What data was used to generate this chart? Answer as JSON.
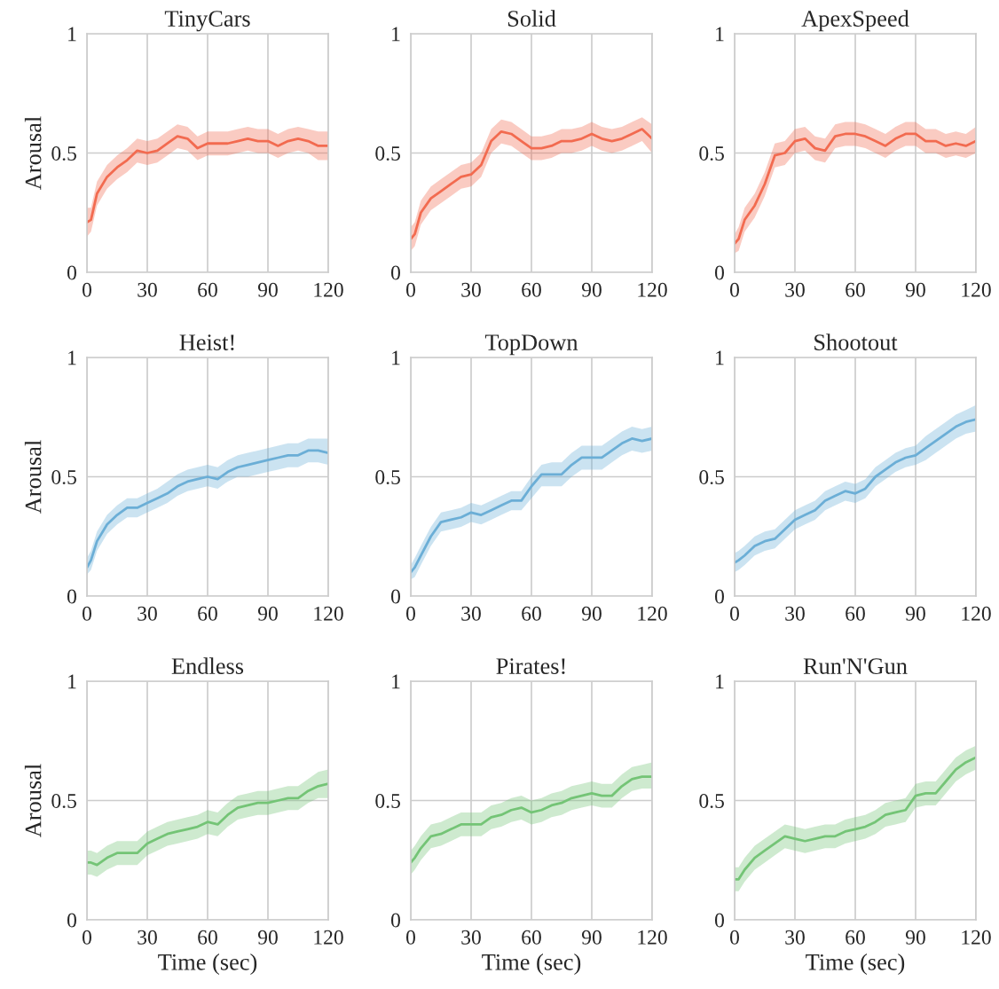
{
  "chart_data": [
    {
      "type": "line",
      "title": "TinyCars",
      "ylabel": "Arousal",
      "x": [
        0,
        2,
        5,
        10,
        15,
        20,
        25,
        30,
        35,
        40,
        45,
        50,
        55,
        60,
        65,
        70,
        75,
        80,
        85,
        90,
        95,
        100,
        105,
        110,
        115,
        120
      ],
      "xlim": [
        0,
        120
      ],
      "ylim": [
        0,
        1
      ],
      "xticks": [
        0,
        30,
        60,
        90,
        120
      ],
      "yticks": [
        0,
        0.5,
        1
      ],
      "grid": true,
      "series": [
        {
          "color": "#f26b50",
          "values": [
            0.21,
            0.22,
            0.33,
            0.4,
            0.44,
            0.47,
            0.51,
            0.5,
            0.51,
            0.54,
            0.57,
            0.56,
            0.52,
            0.54,
            0.54,
            0.54,
            0.55,
            0.56,
            0.55,
            0.55,
            0.53,
            0.55,
            0.56,
            0.55,
            0.53,
            0.53
          ],
          "lower": [
            0.15,
            0.17,
            0.28,
            0.35,
            0.39,
            0.42,
            0.46,
            0.45,
            0.46,
            0.49,
            0.52,
            0.51,
            0.47,
            0.49,
            0.49,
            0.49,
            0.5,
            0.51,
            0.5,
            0.5,
            0.48,
            0.5,
            0.51,
            0.5,
            0.47,
            0.47
          ],
          "upper": [
            0.27,
            0.27,
            0.38,
            0.45,
            0.49,
            0.52,
            0.56,
            0.55,
            0.56,
            0.59,
            0.62,
            0.61,
            0.57,
            0.59,
            0.59,
            0.59,
            0.6,
            0.61,
            0.6,
            0.6,
            0.58,
            0.6,
            0.61,
            0.6,
            0.59,
            0.59
          ]
        }
      ]
    },
    {
      "type": "line",
      "title": "Solid",
      "x": [
        0,
        2,
        5,
        10,
        15,
        20,
        25,
        30,
        35,
        40,
        45,
        50,
        55,
        60,
        65,
        70,
        75,
        80,
        85,
        90,
        95,
        100,
        105,
        110,
        115,
        120
      ],
      "xlim": [
        0,
        120
      ],
      "ylim": [
        0,
        1
      ],
      "xticks": [
        0,
        30,
        60,
        90,
        120
      ],
      "yticks": [
        0,
        0.5,
        1
      ],
      "grid": true,
      "series": [
        {
          "color": "#f26b50",
          "values": [
            0.14,
            0.16,
            0.25,
            0.31,
            0.34,
            0.37,
            0.4,
            0.41,
            0.45,
            0.55,
            0.59,
            0.58,
            0.55,
            0.52,
            0.52,
            0.53,
            0.55,
            0.55,
            0.56,
            0.58,
            0.56,
            0.55,
            0.56,
            0.58,
            0.6,
            0.56
          ],
          "lower": [
            0.09,
            0.11,
            0.2,
            0.26,
            0.29,
            0.32,
            0.35,
            0.36,
            0.4,
            0.5,
            0.54,
            0.53,
            0.5,
            0.47,
            0.47,
            0.48,
            0.5,
            0.5,
            0.51,
            0.53,
            0.51,
            0.5,
            0.51,
            0.53,
            0.55,
            0.5
          ],
          "upper": [
            0.19,
            0.21,
            0.3,
            0.36,
            0.39,
            0.42,
            0.45,
            0.46,
            0.5,
            0.6,
            0.64,
            0.63,
            0.6,
            0.57,
            0.57,
            0.58,
            0.6,
            0.6,
            0.61,
            0.63,
            0.61,
            0.6,
            0.61,
            0.63,
            0.65,
            0.62
          ]
        }
      ]
    },
    {
      "type": "line",
      "title": "ApexSpeed",
      "x": [
        0,
        2,
        5,
        10,
        15,
        20,
        25,
        30,
        35,
        40,
        45,
        50,
        55,
        60,
        65,
        70,
        75,
        80,
        85,
        90,
        95,
        100,
        105,
        110,
        115,
        120
      ],
      "xlim": [
        0,
        120
      ],
      "ylim": [
        0,
        1
      ],
      "xticks": [
        0,
        30,
        60,
        90,
        120
      ],
      "yticks": [
        0,
        0.5,
        1
      ],
      "grid": true,
      "series": [
        {
          "color": "#f26b50",
          "values": [
            0.12,
            0.14,
            0.22,
            0.28,
            0.37,
            0.49,
            0.5,
            0.55,
            0.56,
            0.52,
            0.51,
            0.57,
            0.58,
            0.58,
            0.57,
            0.55,
            0.53,
            0.56,
            0.58,
            0.58,
            0.55,
            0.55,
            0.53,
            0.54,
            0.53,
            0.55
          ],
          "lower": [
            0.08,
            0.09,
            0.17,
            0.23,
            0.32,
            0.44,
            0.45,
            0.5,
            0.51,
            0.47,
            0.46,
            0.52,
            0.53,
            0.53,
            0.52,
            0.5,
            0.48,
            0.51,
            0.53,
            0.53,
            0.5,
            0.5,
            0.48,
            0.49,
            0.48,
            0.5
          ],
          "upper": [
            0.16,
            0.19,
            0.27,
            0.33,
            0.42,
            0.54,
            0.55,
            0.6,
            0.61,
            0.57,
            0.56,
            0.62,
            0.63,
            0.63,
            0.62,
            0.6,
            0.58,
            0.61,
            0.63,
            0.63,
            0.6,
            0.6,
            0.58,
            0.59,
            0.58,
            0.61
          ]
        }
      ]
    },
    {
      "type": "line",
      "title": "Heist!",
      "ylabel": "Arousal",
      "x": [
        0,
        2,
        5,
        10,
        15,
        20,
        25,
        30,
        35,
        40,
        45,
        50,
        55,
        60,
        65,
        70,
        75,
        80,
        85,
        90,
        95,
        100,
        105,
        110,
        115,
        120
      ],
      "xlim": [
        0,
        120
      ],
      "ylim": [
        0,
        1
      ],
      "xticks": [
        0,
        30,
        60,
        90,
        120
      ],
      "yticks": [
        0,
        0.5,
        1
      ],
      "grid": true,
      "series": [
        {
          "color": "#6baed6",
          "values": [
            0.12,
            0.15,
            0.23,
            0.3,
            0.34,
            0.37,
            0.37,
            0.39,
            0.41,
            0.43,
            0.46,
            0.48,
            0.49,
            0.5,
            0.49,
            0.52,
            0.54,
            0.55,
            0.56,
            0.57,
            0.58,
            0.59,
            0.59,
            0.61,
            0.61,
            0.6
          ],
          "lower": [
            0.09,
            0.11,
            0.19,
            0.26,
            0.3,
            0.33,
            0.33,
            0.35,
            0.37,
            0.39,
            0.42,
            0.44,
            0.45,
            0.46,
            0.45,
            0.48,
            0.5,
            0.5,
            0.51,
            0.52,
            0.53,
            0.54,
            0.54,
            0.56,
            0.56,
            0.55
          ],
          "upper": [
            0.16,
            0.19,
            0.27,
            0.34,
            0.38,
            0.41,
            0.41,
            0.43,
            0.45,
            0.48,
            0.51,
            0.53,
            0.54,
            0.55,
            0.54,
            0.57,
            0.59,
            0.6,
            0.61,
            0.62,
            0.63,
            0.64,
            0.64,
            0.66,
            0.66,
            0.66
          ]
        }
      ]
    },
    {
      "type": "line",
      "title": "TopDown",
      "x": [
        0,
        2,
        5,
        10,
        15,
        20,
        25,
        30,
        35,
        40,
        45,
        50,
        55,
        60,
        65,
        70,
        75,
        80,
        85,
        90,
        95,
        100,
        105,
        110,
        115,
        120
      ],
      "xlim": [
        0,
        120
      ],
      "ylim": [
        0,
        1
      ],
      "xticks": [
        0,
        30,
        60,
        90,
        120
      ],
      "yticks": [
        0,
        0.5,
        1
      ],
      "grid": true,
      "series": [
        {
          "color": "#6baed6",
          "values": [
            0.1,
            0.12,
            0.17,
            0.25,
            0.31,
            0.32,
            0.33,
            0.35,
            0.34,
            0.36,
            0.38,
            0.4,
            0.4,
            0.46,
            0.51,
            0.51,
            0.51,
            0.55,
            0.58,
            0.58,
            0.58,
            0.61,
            0.64,
            0.66,
            0.65,
            0.66
          ],
          "lower": [
            0.07,
            0.08,
            0.13,
            0.21,
            0.27,
            0.28,
            0.29,
            0.31,
            0.3,
            0.32,
            0.34,
            0.36,
            0.36,
            0.41,
            0.46,
            0.46,
            0.46,
            0.5,
            0.53,
            0.53,
            0.53,
            0.56,
            0.59,
            0.61,
            0.6,
            0.61
          ],
          "upper": [
            0.13,
            0.16,
            0.21,
            0.29,
            0.35,
            0.36,
            0.37,
            0.39,
            0.38,
            0.4,
            0.42,
            0.44,
            0.44,
            0.5,
            0.55,
            0.56,
            0.56,
            0.6,
            0.63,
            0.63,
            0.63,
            0.66,
            0.69,
            0.71,
            0.7,
            0.71
          ]
        }
      ]
    },
    {
      "type": "line",
      "title": "Shootout",
      "x": [
        0,
        2,
        5,
        10,
        15,
        20,
        25,
        30,
        35,
        40,
        45,
        50,
        55,
        60,
        65,
        70,
        75,
        80,
        85,
        90,
        95,
        100,
        105,
        110,
        115,
        120
      ],
      "xlim": [
        0,
        120
      ],
      "ylim": [
        0,
        1
      ],
      "xticks": [
        0,
        30,
        60,
        90,
        120
      ],
      "yticks": [
        0,
        0.5,
        1
      ],
      "grid": true,
      "series": [
        {
          "color": "#6baed6",
          "values": [
            0.14,
            0.15,
            0.17,
            0.21,
            0.23,
            0.24,
            0.28,
            0.32,
            0.34,
            0.36,
            0.4,
            0.42,
            0.44,
            0.43,
            0.45,
            0.5,
            0.53,
            0.56,
            0.58,
            0.59,
            0.62,
            0.65,
            0.68,
            0.71,
            0.73,
            0.74
          ],
          "lower": [
            0.1,
            0.11,
            0.13,
            0.17,
            0.19,
            0.2,
            0.24,
            0.28,
            0.3,
            0.32,
            0.36,
            0.38,
            0.4,
            0.39,
            0.41,
            0.46,
            0.49,
            0.52,
            0.54,
            0.55,
            0.57,
            0.6,
            0.63,
            0.66,
            0.68,
            0.69
          ],
          "upper": [
            0.18,
            0.19,
            0.21,
            0.25,
            0.27,
            0.28,
            0.32,
            0.36,
            0.38,
            0.4,
            0.44,
            0.46,
            0.48,
            0.47,
            0.49,
            0.54,
            0.57,
            0.6,
            0.62,
            0.63,
            0.67,
            0.7,
            0.73,
            0.76,
            0.78,
            0.8
          ]
        }
      ]
    },
    {
      "type": "line",
      "title": "Endless",
      "ylabel": "Arousal",
      "xlabel": "Time (sec)",
      "x": [
        0,
        2,
        5,
        10,
        15,
        20,
        25,
        30,
        35,
        40,
        45,
        50,
        55,
        60,
        65,
        70,
        75,
        80,
        85,
        90,
        95,
        100,
        105,
        110,
        115,
        120
      ],
      "xlim": [
        0,
        120
      ],
      "ylim": [
        0,
        1
      ],
      "xticks": [
        0,
        30,
        60,
        90,
        120
      ],
      "yticks": [
        0,
        0.5,
        1
      ],
      "grid": true,
      "series": [
        {
          "color": "#74c476",
          "values": [
            0.24,
            0.24,
            0.23,
            0.26,
            0.28,
            0.28,
            0.28,
            0.32,
            0.34,
            0.36,
            0.37,
            0.38,
            0.39,
            0.41,
            0.4,
            0.44,
            0.47,
            0.48,
            0.49,
            0.49,
            0.5,
            0.51,
            0.51,
            0.54,
            0.56,
            0.57
          ],
          "lower": [
            0.19,
            0.19,
            0.18,
            0.21,
            0.23,
            0.23,
            0.23,
            0.27,
            0.29,
            0.31,
            0.32,
            0.33,
            0.34,
            0.36,
            0.35,
            0.39,
            0.42,
            0.43,
            0.44,
            0.44,
            0.45,
            0.46,
            0.46,
            0.49,
            0.51,
            0.51
          ],
          "upper": [
            0.29,
            0.29,
            0.28,
            0.31,
            0.33,
            0.33,
            0.33,
            0.37,
            0.39,
            0.41,
            0.42,
            0.43,
            0.44,
            0.46,
            0.45,
            0.49,
            0.52,
            0.53,
            0.54,
            0.54,
            0.55,
            0.56,
            0.56,
            0.59,
            0.62,
            0.63
          ]
        }
      ]
    },
    {
      "type": "line",
      "title": "Pirates!",
      "xlabel": "Time (sec)",
      "x": [
        0,
        2,
        5,
        10,
        15,
        20,
        25,
        30,
        35,
        40,
        45,
        50,
        55,
        60,
        65,
        70,
        75,
        80,
        85,
        90,
        95,
        100,
        105,
        110,
        115,
        120
      ],
      "xlim": [
        0,
        120
      ],
      "ylim": [
        0,
        1
      ],
      "xticks": [
        0,
        30,
        60,
        90,
        120
      ],
      "yticks": [
        0,
        0.5,
        1
      ],
      "grid": true,
      "series": [
        {
          "color": "#74c476",
          "values": [
            0.24,
            0.26,
            0.3,
            0.35,
            0.36,
            0.38,
            0.4,
            0.4,
            0.4,
            0.43,
            0.44,
            0.46,
            0.47,
            0.45,
            0.46,
            0.48,
            0.49,
            0.51,
            0.52,
            0.53,
            0.52,
            0.52,
            0.56,
            0.59,
            0.6,
            0.6
          ],
          "lower": [
            0.19,
            0.21,
            0.25,
            0.3,
            0.31,
            0.33,
            0.35,
            0.35,
            0.35,
            0.38,
            0.39,
            0.41,
            0.42,
            0.4,
            0.41,
            0.43,
            0.44,
            0.46,
            0.47,
            0.48,
            0.47,
            0.47,
            0.51,
            0.54,
            0.55,
            0.55
          ],
          "upper": [
            0.29,
            0.31,
            0.35,
            0.4,
            0.41,
            0.43,
            0.45,
            0.45,
            0.45,
            0.48,
            0.49,
            0.51,
            0.52,
            0.5,
            0.51,
            0.53,
            0.54,
            0.56,
            0.57,
            0.58,
            0.57,
            0.57,
            0.61,
            0.64,
            0.65,
            0.66
          ]
        }
      ]
    },
    {
      "type": "line",
      "title": "Run'N'Gun",
      "xlabel": "Time (sec)",
      "x": [
        0,
        2,
        5,
        10,
        15,
        20,
        25,
        30,
        35,
        40,
        45,
        50,
        55,
        60,
        65,
        70,
        75,
        80,
        85,
        90,
        95,
        100,
        105,
        110,
        115,
        120
      ],
      "xlim": [
        0,
        120
      ],
      "ylim": [
        0,
        1
      ],
      "xticks": [
        0,
        30,
        60,
        90,
        120
      ],
      "yticks": [
        0,
        0.5,
        1
      ],
      "grid": true,
      "series": [
        {
          "color": "#74c476",
          "values": [
            0.17,
            0.17,
            0.21,
            0.26,
            0.29,
            0.32,
            0.35,
            0.34,
            0.33,
            0.34,
            0.35,
            0.35,
            0.37,
            0.38,
            0.39,
            0.41,
            0.44,
            0.45,
            0.46,
            0.52,
            0.53,
            0.53,
            0.58,
            0.63,
            0.66,
            0.68
          ],
          "lower": [
            0.12,
            0.12,
            0.16,
            0.21,
            0.24,
            0.27,
            0.3,
            0.29,
            0.28,
            0.29,
            0.3,
            0.3,
            0.32,
            0.33,
            0.34,
            0.36,
            0.39,
            0.4,
            0.41,
            0.47,
            0.48,
            0.48,
            0.53,
            0.58,
            0.61,
            0.63
          ],
          "upper": [
            0.22,
            0.22,
            0.26,
            0.31,
            0.34,
            0.37,
            0.4,
            0.39,
            0.38,
            0.39,
            0.4,
            0.4,
            0.42,
            0.43,
            0.44,
            0.46,
            0.49,
            0.5,
            0.51,
            0.57,
            0.58,
            0.58,
            0.63,
            0.68,
            0.71,
            0.73
          ]
        }
      ]
    }
  ]
}
